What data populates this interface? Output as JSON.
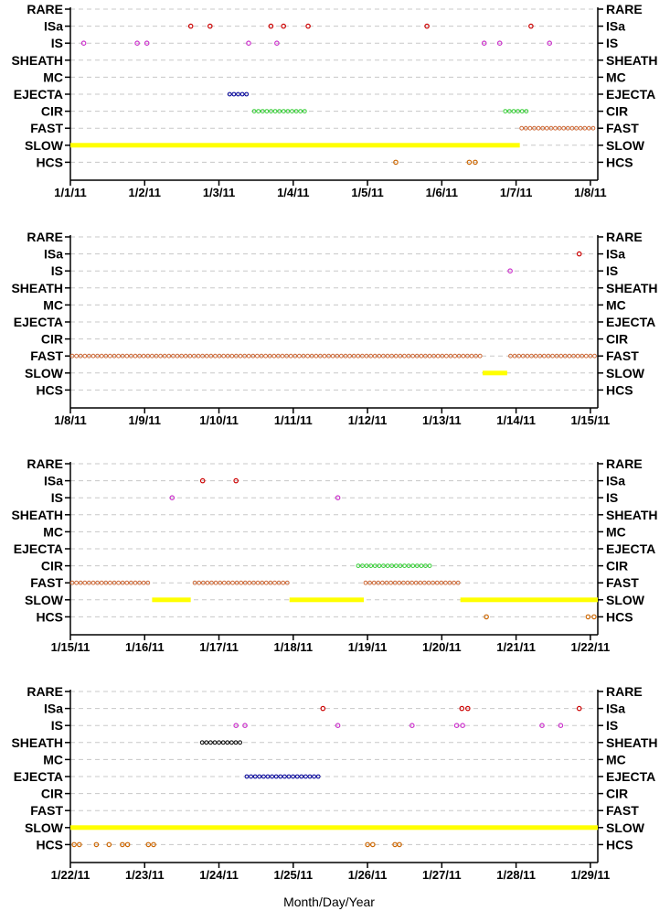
{
  "chart_data": {
    "type": "scatter",
    "xlabel": "Month/Day/Year",
    "categories": [
      "RARE",
      "ISa",
      "IS",
      "SHEATH",
      "MC",
      "EJECTA",
      "CIR",
      "FAST",
      "SLOW",
      "HCS"
    ],
    "colors": {
      "ISa": "#cc0000",
      "IS": "#cc33cc",
      "SHEATH": "#000000",
      "EJECTA": "#000099",
      "CIR": "#33cc33",
      "FAST": "#cc6633",
      "SLOW": "#ffff00",
      "HCS": "#cc6600"
    },
    "panels": [
      {
        "xlim": [
          0,
          7.1
        ],
        "ticks": [
          "1/1/11",
          "1/2/11",
          "1/3/11",
          "1/4/11",
          "1/5/11",
          "1/6/11",
          "1/7/11",
          "1/8/11"
        ],
        "points": {
          "ISa": [
            1.62,
            1.88,
            2.7,
            2.87,
            3.2,
            4.8,
            6.2
          ],
          "IS": [
            0.18,
            0.9,
            1.03,
            2.4,
            2.78,
            5.57,
            5.78,
            6.45
          ],
          "HCS": [
            4.38,
            5.37,
            5.45
          ]
        },
        "ranges": {
          "SLOW": [
            [
              0.0,
              6.05
            ]
          ],
          "FAST": [
            [
              6.05,
              7.1
            ]
          ],
          "CIR": [
            [
              2.45,
              3.2
            ],
            [
              5.83,
              6.2
            ]
          ],
          "EJECTA": [
            [
              2.12,
              2.4
            ]
          ]
        }
      },
      {
        "xlim": [
          7,
          14.1
        ],
        "ticks": [
          "1/8/11",
          "1/9/11",
          "1/10/11",
          "1/11/11",
          "1/12/11",
          "1/13/11",
          "1/14/11",
          "1/15/11"
        ],
        "points": {
          "ISa": [
            13.85
          ],
          "IS": [
            12.92
          ]
        },
        "ranges": {
          "FAST": [
            [
              7.0,
              12.55
            ],
            [
              12.9,
              14.1
            ]
          ],
          "SLOW": [
            [
              12.55,
              12.88
            ]
          ]
        }
      },
      {
        "xlim": [
          14,
          21.1
        ],
        "ticks": [
          "1/15/11",
          "1/16/11",
          "1/17/11",
          "1/18/11",
          "1/19/11",
          "1/20/11",
          "1/21/11",
          "1/22/11"
        ],
        "points": {
          "ISa": [
            15.78,
            16.23
          ],
          "IS": [
            15.37,
            17.6
          ],
          "HCS": [
            19.6,
            20.97,
            21.05
          ]
        },
        "ranges": {
          "FAST": [
            [
              14.0,
              15.1
            ],
            [
              15.65,
              16.95
            ],
            [
              17.95,
              19.25
            ]
          ],
          "SLOW": [
            [
              15.1,
              15.62
            ],
            [
              16.95,
              17.95
            ],
            [
              19.25,
              21.1
            ]
          ],
          "CIR": [
            [
              17.85,
              18.85
            ]
          ]
        }
      },
      {
        "xlim": [
          21,
          28.1
        ],
        "ticks": [
          "1/22/11",
          "1/23/11",
          "1/24/11",
          "1/25/11",
          "1/26/11",
          "1/27/11",
          "1/28/11",
          "1/29/11"
        ],
        "points": {
          "ISa": [
            24.4,
            26.27,
            26.35,
            27.85
          ],
          "IS": [
            23.23,
            23.35,
            24.6,
            25.6,
            26.2,
            26.28,
            27.35,
            27.6
          ],
          "HCS": [
            21.05,
            21.12,
            21.35,
            21.52,
            21.7,
            21.77,
            22.05,
            22.12,
            25.0,
            25.07,
            25.37,
            25.43
          ]
        },
        "ranges": {
          "SLOW": [
            [
              21.0,
              28.1
            ]
          ],
          "SHEATH": [
            [
              22.75,
              23.35
            ]
          ],
          "EJECTA": [
            [
              23.35,
              24.4
            ]
          ]
        }
      }
    ]
  }
}
